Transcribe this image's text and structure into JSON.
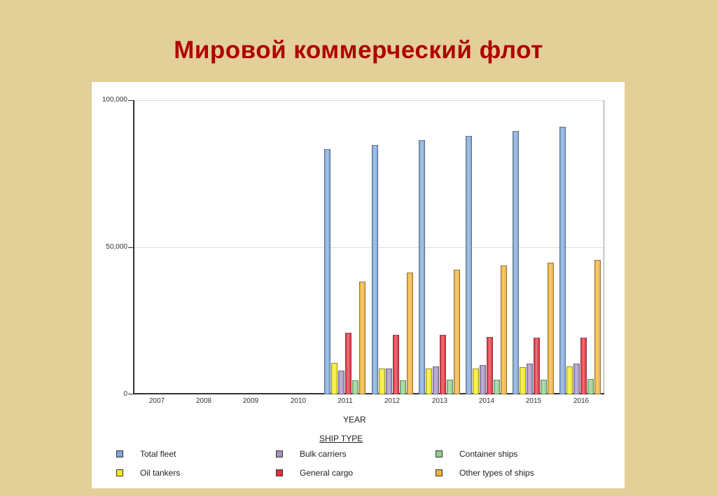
{
  "slide": {
    "title": "Мировой коммерческий флот"
  },
  "colors": {
    "background": "#e3cf98",
    "title": "#b00000",
    "total_fleet": "#7fa6d8",
    "oil_tankers": "#f2ea1c",
    "bulk_carriers": "#a28fc4",
    "general_cargo": "#e2303a",
    "container_ships": "#8fcf8a",
    "other_types": "#f0b23a"
  },
  "axes": {
    "y_ticks": [
      "100,000",
      "50,000",
      "0"
    ],
    "x_ticks": [
      "2007",
      "2008",
      "2009",
      "2010",
      "2011",
      "2012",
      "2013",
      "2014",
      "2015",
      "2016"
    ],
    "xlabel": "YEAR"
  },
  "legend": {
    "title": "SHIP TYPE",
    "items": [
      {
        "label": "Total fleet"
      },
      {
        "label": "Bulk carriers"
      },
      {
        "label": "Container ships"
      },
      {
        "label": "Oil tankers"
      },
      {
        "label": "General cargo"
      },
      {
        "label": "Other types of ships"
      }
    ]
  },
  "chart_data": {
    "type": "bar",
    "title": "Мировой коммерческий флот",
    "xlabel": "YEAR",
    "ylabel": "",
    "ylim": [
      0,
      100000
    ],
    "grid": true,
    "legend_position": "bottom",
    "legend_title": "SHIP TYPE",
    "categories": [
      "2007",
      "2008",
      "2009",
      "2010",
      "2011",
      "2012",
      "2013",
      "2014",
      "2015",
      "2016"
    ],
    "series": [
      {
        "name": "Total fleet",
        "values": [
          null,
          null,
          null,
          null,
          83300,
          84800,
          86400,
          87900,
          89500,
          91000
        ]
      },
      {
        "name": "Oil tankers",
        "values": [
          null,
          null,
          null,
          null,
          10700,
          8800,
          8800,
          8900,
          9300,
          9500
        ]
      },
      {
        "name": "Bulk carriers",
        "values": [
          null,
          null,
          null,
          null,
          8100,
          8800,
          9500,
          10000,
          10500,
          10500
        ]
      },
      {
        "name": "General cargo",
        "values": [
          null,
          null,
          null,
          null,
          21000,
          20200,
          20200,
          19500,
          19300,
          19300
        ]
      },
      {
        "name": "Container ships",
        "values": [
          null,
          null,
          null,
          null,
          4800,
          4800,
          5000,
          5000,
          5000,
          5200
        ]
      },
      {
        "name": "Other types of ships",
        "values": [
          null,
          null,
          null,
          null,
          38300,
          41400,
          42400,
          43800,
          44800,
          45700
        ]
      }
    ]
  }
}
